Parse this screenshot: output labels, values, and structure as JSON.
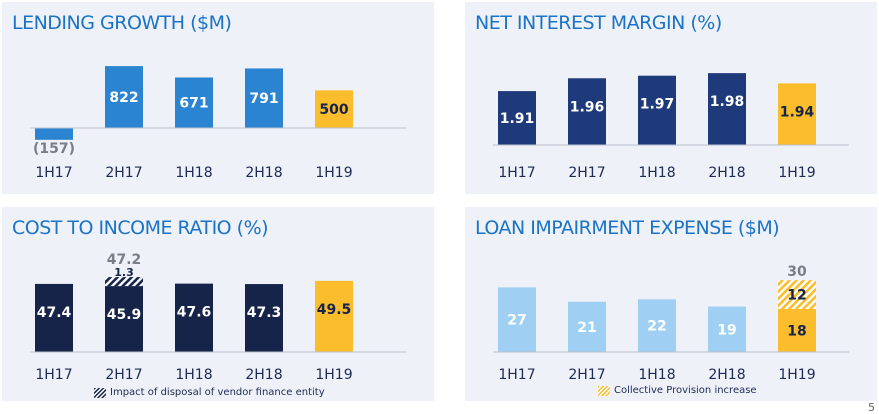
{
  "colors": {
    "light_blue": "#9fd0f3",
    "mid_blue": "#2b84d2",
    "navy": "#1f3a7a",
    "dark_navy": "#16244a",
    "gold": "#fbbd2c",
    "panel_bg": "#eef1f7",
    "title": "#1a73c7",
    "label": "#1d2a55",
    "grey_text": "#7a7d86"
  },
  "chart_data": [
    {
      "type": "bar",
      "title": "LENDING GROWTH ($M)",
      "categories": [
        "1H17",
        "2H17",
        "1H18",
        "2H18",
        "1H19"
      ],
      "values": [
        -157,
        822,
        671,
        791,
        500
      ],
      "value_labels": [
        "(157)",
        "822",
        "671",
        "791",
        "500"
      ],
      "colors": [
        "mid_blue",
        "mid_blue",
        "mid_blue",
        "mid_blue",
        "gold"
      ],
      "ylim": [
        -200,
        850
      ]
    },
    {
      "type": "bar",
      "title": "NET INTEREST MARGIN (%)",
      "categories": [
        "1H17",
        "2H17",
        "1H18",
        "2H18",
        "1H19"
      ],
      "values": [
        1.91,
        1.96,
        1.97,
        1.98,
        1.94
      ],
      "value_labels": [
        "1.91",
        "1.96",
        "1.97",
        "1.98",
        "1.94"
      ],
      "colors": [
        "navy",
        "navy",
        "navy",
        "navy",
        "gold"
      ],
      "ylim": [
        0,
        2.1
      ]
    },
    {
      "type": "bar",
      "title": "COST TO INCOME RATIO (%)",
      "categories": [
        "1H17",
        "2H17",
        "1H18",
        "2H18",
        "1H19"
      ],
      "values": [
        47.4,
        45.9,
        47.6,
        47.3,
        49.5
      ],
      "value_labels": [
        "47.4",
        "45.9",
        "47.6",
        "47.3",
        "49.5"
      ],
      "stacked_extra": {
        "category": "2H17",
        "value": 1.3,
        "label": "1.3",
        "total_label": "47.2"
      },
      "colors": [
        "dark_navy",
        "dark_navy",
        "dark_navy",
        "dark_navy",
        "gold"
      ],
      "legend": "Impact of disposal of vendor finance entity",
      "ylim": [
        0,
        55
      ]
    },
    {
      "type": "bar",
      "title": "LOAN IMPAIRMENT EXPENSE ($M)",
      "categories": [
        "1H17",
        "2H17",
        "1H18",
        "2H18",
        "1H19"
      ],
      "values": [
        27,
        21,
        22,
        19,
        18
      ],
      "value_labels": [
        "27",
        "21",
        "22",
        "19",
        "18"
      ],
      "stacked_extra": {
        "category": "1H19",
        "value": 12,
        "label": "12",
        "total_label": "30"
      },
      "colors": [
        "light_blue",
        "light_blue",
        "light_blue",
        "light_blue",
        "gold"
      ],
      "legend": "Collective Provision increase",
      "ylim": [
        0,
        33
      ]
    }
  ],
  "page_number": "5"
}
